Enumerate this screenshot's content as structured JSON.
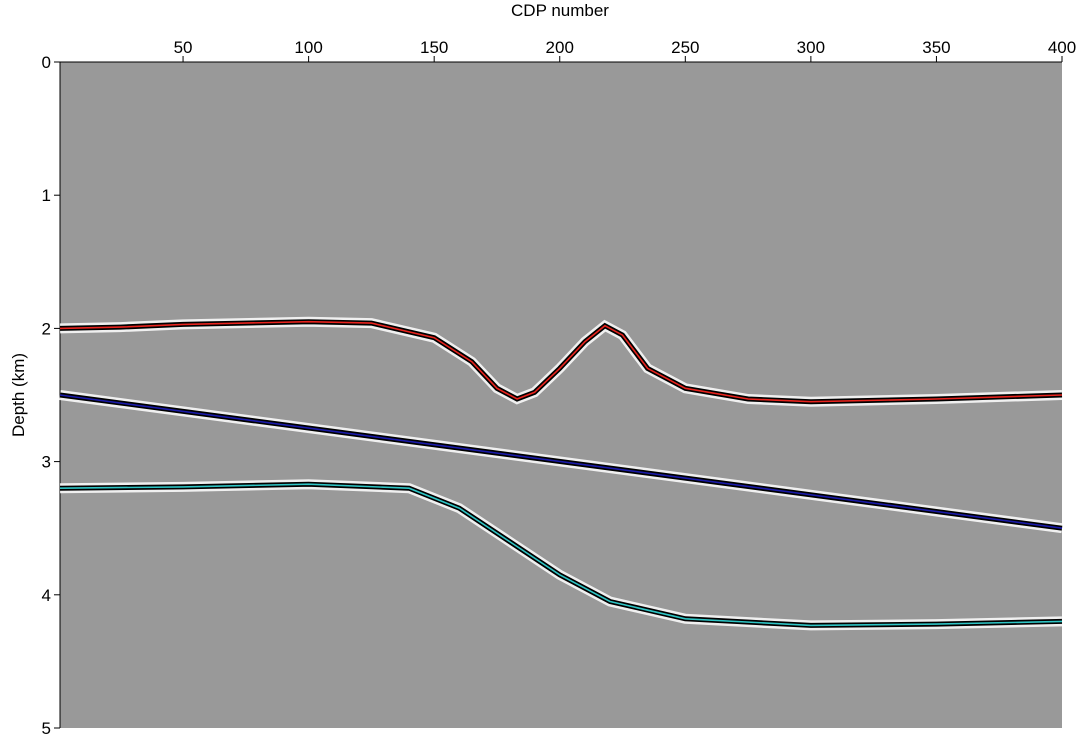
{
  "chart_data": {
    "type": "line",
    "xlabel": "CDP number",
    "ylabel": "Depth (km)",
    "xlim": [
      1,
      400
    ],
    "xticks": [
      50,
      100,
      150,
      200,
      250,
      300,
      350,
      400
    ],
    "ylim": [
      0,
      5
    ],
    "yticks": [
      0,
      1,
      2,
      3,
      4,
      5
    ],
    "y_inverted": true,
    "x_axis_position": "top",
    "background": "#999999",
    "series": [
      {
        "color": "#e8231d",
        "x": [
          1,
          25,
          50,
          100,
          125,
          150,
          165,
          175,
          183,
          190,
          200,
          210,
          218,
          225,
          235,
          250,
          275,
          300,
          350,
          400
        ],
        "values": [
          2.0,
          1.99,
          1.97,
          1.95,
          1.96,
          2.07,
          2.25,
          2.45,
          2.53,
          2.48,
          2.3,
          2.1,
          1.98,
          2.05,
          2.3,
          2.45,
          2.53,
          2.55,
          2.53,
          2.5
        ]
      },
      {
        "color": "#1a1aa8",
        "x": [
          1,
          400
        ],
        "values": [
          2.5,
          3.5
        ]
      },
      {
        "color": "#2ec4c4",
        "x": [
          1,
          50,
          100,
          140,
          160,
          180,
          200,
          220,
          250,
          300,
          350,
          400
        ],
        "values": [
          3.2,
          3.19,
          3.17,
          3.2,
          3.35,
          3.6,
          3.85,
          4.05,
          4.18,
          4.23,
          4.22,
          4.2
        ]
      }
    ]
  }
}
